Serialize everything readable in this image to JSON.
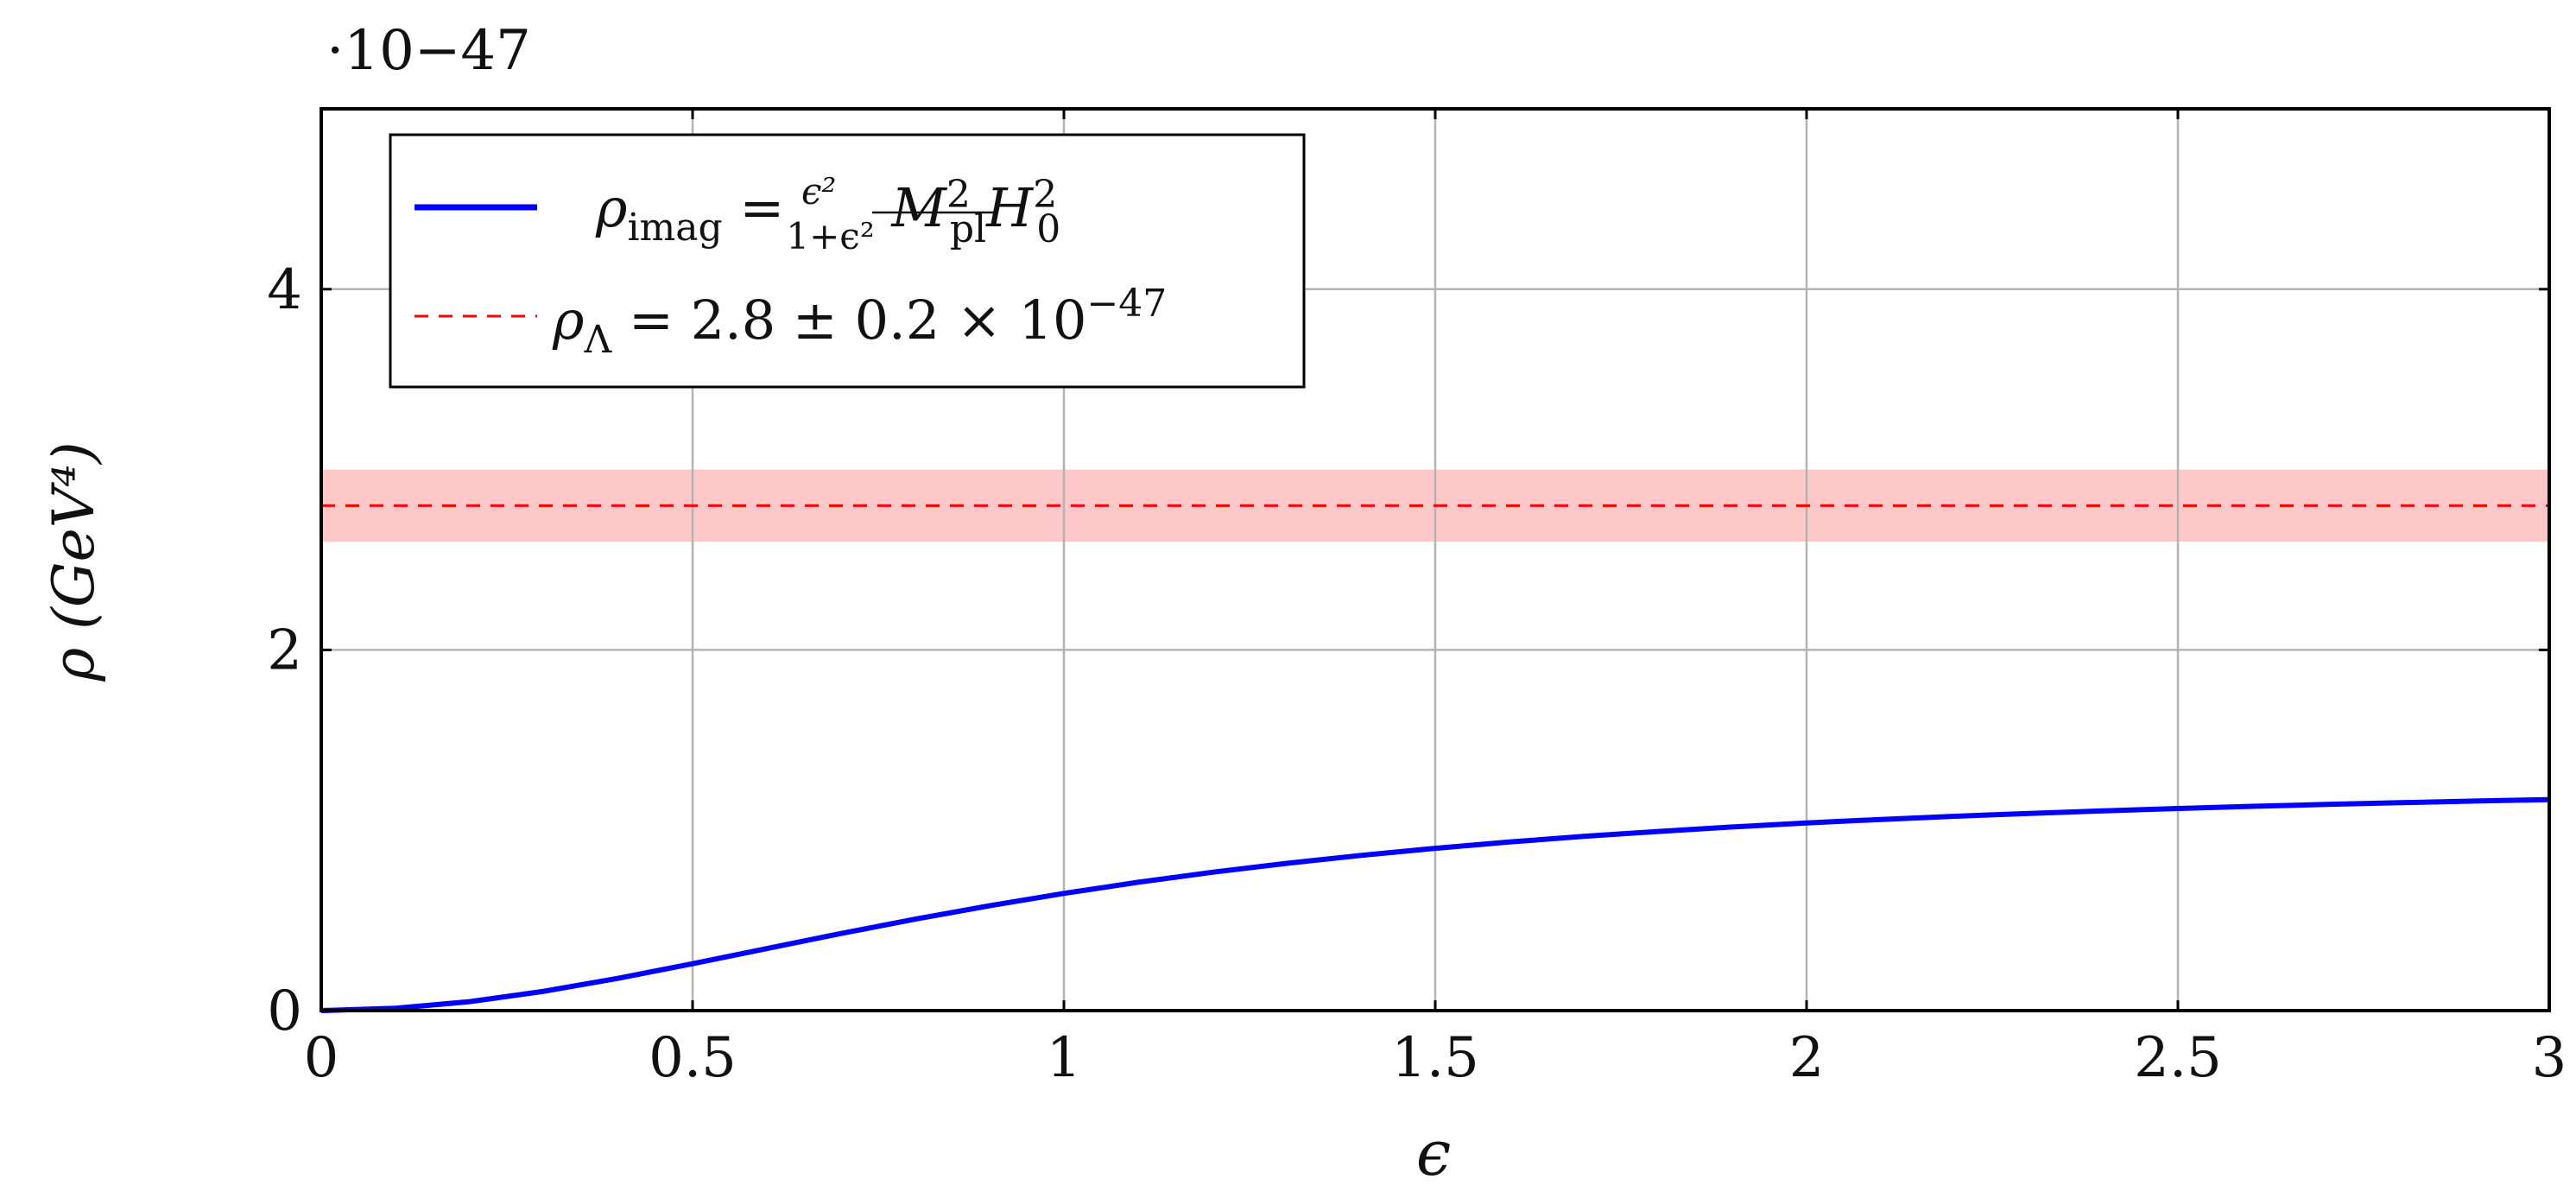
{
  "chart_data": {
    "type": "line",
    "x_label": "ϵ",
    "y_label": "ρ (GeV⁴)",
    "y_multiplier_label": "·10−47",
    "xlim": [
      0,
      3
    ],
    "ylim": [
      0,
      5
    ],
    "x_ticks": [
      0,
      0.5,
      1,
      1.5,
      2,
      2.5,
      3
    ],
    "x_tick_labels": [
      "0",
      "0.5",
      "1",
      "1.5",
      "2",
      "2.5",
      "3"
    ],
    "y_ticks": [
      0,
      2,
      4
    ],
    "y_tick_labels": [
      "0",
      "2",
      "4"
    ],
    "grid": true,
    "legend_position": "top-left",
    "series": [
      {
        "name": "ρimag = ϵ²/(1+ϵ²) M²pl H²0",
        "style": "solid",
        "color": "#0000ff",
        "x": [
          0,
          0.1,
          0.2,
          0.3,
          0.4,
          0.5,
          0.6,
          0.7,
          0.8,
          0.9,
          1.0,
          1.1,
          1.2,
          1.3,
          1.4,
          1.5,
          1.6,
          1.7,
          1.8,
          1.9,
          2.0,
          2.1,
          2.2,
          2.3,
          2.4,
          2.5,
          2.6,
          2.7,
          2.8,
          2.9,
          3.0
        ],
        "y": [
          0,
          0.0129,
          0.05,
          0.1073,
          0.1793,
          0.26,
          0.3441,
          0.4275,
          0.5073,
          0.5815,
          0.65,
          0.7119,
          0.7672,
          0.8166,
          0.8605,
          0.9,
          0.9348,
          0.966,
          0.9935,
          1.0182,
          1.04,
          1.0598,
          1.0777,
          1.0935,
          1.1077,
          1.1207,
          1.1325,
          1.143,
          1.153,
          1.1618,
          1.17
        ]
      },
      {
        "name": "ρΛ = 2.8 ± 0.2 × 10−47",
        "style": "dashed",
        "color": "#ff0000",
        "x": [
          0,
          3
        ],
        "y": [
          2.8,
          2.8
        ],
        "band": [
          2.6,
          3.0
        ],
        "band_color": "#ffc8c8"
      }
    ]
  }
}
